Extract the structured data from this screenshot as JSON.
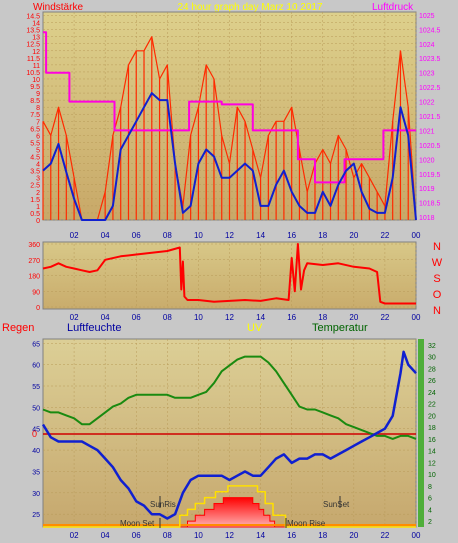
{
  "header": {
    "left_label": "Windstärke",
    "title": "24 hour graph day   Marz 10 2017",
    "right_label": "Luftdruck"
  },
  "mid_panel": {
    "compass_letters": [
      "N",
      "W",
      "S",
      "O",
      "N"
    ]
  },
  "lower_header": {
    "regen": "Regen",
    "luftfeuchte": "Luftfeuchte",
    "uv": "UV",
    "temperatur": "Temperatur"
  },
  "annotations": {
    "moon_set": "Moon Set",
    "moon_rise": "Moon Rise",
    "sun_rise": "SunRis",
    "sun_set": "SunSet",
    "zero_marker": "0"
  },
  "colors": {
    "wind": "#ff2a00",
    "wind_avg": "#1020d0",
    "pressure": "#ff00e0",
    "direction": "#ff0000",
    "humidity": "#1020d0",
    "temperature": "#1a8a10",
    "uv": "#ffe000",
    "solar": "#ff0000",
    "header_left": "#ff0000",
    "header_title": "#ffff00",
    "header_right": "#ff00ff",
    "regen_label": "#ff0000",
    "lf_label": "#0000a0",
    "temp_label": "#006400"
  },
  "chart_data": [
    {
      "type": "line",
      "title": "24 hour graph day   Marz 10 2017",
      "x_ticks": [
        "02",
        "04",
        "06",
        "08",
        "10",
        "12",
        "14",
        "16",
        "18",
        "20",
        "22",
        "00"
      ],
      "y_left_label": "Windstärke",
      "y_left_ticks": [
        0,
        0.5,
        1,
        1.5,
        2,
        2.5,
        3,
        3.5,
        4,
        4.5,
        5,
        5.5,
        6,
        6.5,
        7,
        7.5,
        8,
        8.5,
        9,
        9.5,
        10,
        10.5,
        11,
        11.5,
        12,
        12.5,
        13,
        13.5,
        14,
        14.5
      ],
      "y_left_range": [
        0,
        14.75
      ],
      "y_right_label": "Luftdruck",
      "y_right_ticks": [
        1018,
        1018.5,
        1019,
        1019.5,
        1020,
        1020.5,
        1021,
        1021.5,
        1022,
        1022.5,
        1023,
        1023.5,
        1024,
        1024.5,
        1025
      ],
      "y_right_range": [
        1017.9,
        1025.1
      ],
      "series": [
        {
          "name": "Windstärke",
          "x": [
            0,
            0.5,
            1,
            1.5,
            2,
            2.5,
            3,
            3.5,
            4,
            4.5,
            5,
            5.5,
            6,
            6.5,
            7,
            7.5,
            8,
            8.5,
            9,
            9.5,
            10,
            10.5,
            11,
            11.5,
            12,
            12.5,
            13,
            13.5,
            14,
            14.5,
            15,
            15.5,
            16,
            16.5,
            17,
            17.5,
            18,
            18.5,
            19,
            19.5,
            20,
            20.5,
            21,
            21.5,
            22,
            22.5,
            23,
            23.5,
            24
          ],
          "values": [
            7,
            6,
            8,
            6,
            3,
            0,
            0,
            0,
            2,
            6,
            8,
            11,
            12,
            12,
            13,
            10,
            11,
            4,
            1,
            6,
            8,
            11,
            10,
            6,
            4,
            8,
            7,
            5,
            3,
            6,
            7,
            7,
            8,
            5,
            2,
            4,
            5,
            4,
            6,
            5,
            3,
            4,
            3,
            2,
            1,
            7,
            12,
            8,
            0
          ]
        },
        {
          "name": "Wind average",
          "x": [
            0,
            0.5,
            1,
            1.5,
            2,
            2.5,
            3,
            3.5,
            4,
            4.5,
            5,
            5.5,
            6,
            6.5,
            7,
            7.5,
            8,
            8.5,
            9,
            9.5,
            10,
            10.5,
            11,
            11.5,
            12,
            12.5,
            13,
            13.5,
            14,
            14.5,
            15,
            15.5,
            16,
            16.5,
            17,
            17.5,
            18,
            18.5,
            19,
            19.5,
            20,
            20.5,
            21,
            21.5,
            22,
            22.5,
            23,
            23.5,
            24
          ],
          "values": [
            3.5,
            4,
            5.4,
            3.4,
            1.5,
            0,
            0,
            0,
            0,
            1,
            5,
            6,
            7,
            8,
            9,
            8.5,
            8.5,
            4,
            0.5,
            1,
            4,
            5,
            4.5,
            3,
            3,
            3.5,
            4,
            3.5,
            1,
            1,
            2.5,
            3.5,
            2,
            1,
            0.5,
            0.5,
            2,
            1,
            2.5,
            3.5,
            4,
            2,
            0.8,
            0.5,
            0.5,
            3,
            8,
            6,
            0
          ]
        },
        {
          "name": "Luftdruck",
          "x": [
            0,
            0.2,
            0.2,
            1.7,
            1.7,
            4.6,
            4.6,
            9.4,
            9.4,
            11.5,
            11.5,
            13.5,
            13.5,
            16.4,
            16.4,
            17.5,
            17.5,
            19.4,
            19.4,
            21.5,
            21.5,
            21.9,
            21.9,
            24
          ],
          "values": [
            1024.4,
            1024.4,
            1023,
            1023,
            1022,
            1022,
            1021,
            1021,
            1022,
            1022,
            1021.9,
            1021.9,
            1021,
            1021,
            1020,
            1020,
            1019.2,
            1019.2,
            1020,
            1020,
            1020,
            1020,
            1021,
            1021
          ]
        }
      ]
    },
    {
      "type": "line",
      "y_ticks": [
        0,
        90,
        180,
        270,
        360
      ],
      "y_range": [
        0,
        360
      ],
      "y_right_labels": [
        "N",
        "W",
        "S",
        "O",
        "N"
      ],
      "series": [
        {
          "name": "Windrichtung",
          "x": [
            0,
            0.5,
            1,
            1.5,
            2,
            2.5,
            3,
            3.5,
            4,
            5,
            6,
            7,
            8,
            8.8,
            8.9,
            9,
            9.1,
            9.3,
            10,
            11,
            12,
            13,
            14,
            15,
            15.8,
            16,
            16.2,
            16.4,
            16.6,
            16.8,
            17,
            18,
            19,
            20,
            21,
            21.5,
            21.7,
            22,
            23,
            24
          ],
          "values": [
            220,
            230,
            250,
            230,
            220,
            210,
            200,
            210,
            270,
            290,
            300,
            310,
            320,
            340,
            100,
            260,
            60,
            40,
            40,
            30,
            35,
            40,
            35,
            50,
            40,
            280,
            90,
            360,
            100,
            210,
            250,
            240,
            250,
            230,
            220,
            200,
            30,
            20,
            20,
            20
          ]
        }
      ]
    },
    {
      "type": "line",
      "y_left_label": "Luftfeuchte",
      "y_left_ticks": [
        25,
        30,
        35,
        40,
        45,
        50,
        55,
        60,
        65
      ],
      "y_left_range": [
        22,
        66
      ],
      "y_right_label": "Temperatur",
      "y_right_ticks": [
        2,
        4,
        6,
        8,
        10,
        12,
        14,
        16,
        18,
        20,
        22,
        24,
        26,
        28,
        30,
        32
      ],
      "y_right_range": [
        1,
        33
      ],
      "series": [
        {
          "name": "Luftfeuchte",
          "x": [
            0,
            0.5,
            1,
            1.5,
            2,
            2.5,
            3,
            3.5,
            4,
            4.5,
            5,
            5.5,
            6,
            6.5,
            7,
            7.5,
            8,
            8.5,
            9,
            9.5,
            10,
            10.5,
            11,
            11.5,
            12,
            12.5,
            13,
            13.5,
            14,
            14.5,
            15,
            15.5,
            16,
            16.5,
            17,
            17.5,
            18,
            18.5,
            19,
            19.5,
            20,
            20.5,
            21,
            21.5,
            22,
            22.5,
            23,
            23.2,
            23.5,
            24
          ],
          "values": [
            46,
            43,
            42,
            42,
            42,
            42,
            41,
            40,
            38,
            36,
            33,
            31,
            28,
            27,
            25,
            25,
            24,
            25,
            30,
            33,
            34,
            34,
            34,
            34,
            33,
            34,
            35,
            34,
            34,
            36,
            38,
            39,
            37,
            38,
            38,
            39,
            39,
            38,
            39,
            40,
            41,
            42,
            43,
            44,
            45,
            48,
            58,
            63,
            60,
            58
          ]
        },
        {
          "name": "Temperatur",
          "x": [
            0,
            0.5,
            1,
            1.5,
            2,
            2.5,
            3,
            3.5,
            4,
            4.5,
            5,
            5.5,
            6,
            6.5,
            7,
            7.5,
            8,
            8.5,
            9,
            9.5,
            10,
            10.5,
            11,
            11.5,
            12,
            12.5,
            13,
            13.5,
            14,
            14.5,
            15,
            15.5,
            16,
            16.5,
            17,
            17.5,
            18,
            18.5,
            19,
            19.5,
            20,
            20.5,
            21,
            21.5,
            22,
            22.5,
            23,
            23.5,
            24
          ],
          "values": [
            21,
            20.5,
            20.5,
            20,
            19.5,
            18.5,
            18.5,
            19.5,
            20.5,
            21.5,
            22,
            23,
            23.5,
            23.5,
            23.5,
            23.5,
            23.5,
            23,
            23,
            23,
            23.5,
            24,
            25.5,
            27.5,
            28.5,
            29.5,
            30,
            30,
            30,
            29,
            27.5,
            25.5,
            23.5,
            21.5,
            21,
            21,
            20.5,
            20,
            19.5,
            18.5,
            18,
            17.5,
            17,
            16.5,
            16.5,
            16,
            16.5,
            16.5,
            16
          ]
        },
        {
          "name": "UV",
          "x": [
            0,
            8.8,
            8.8,
            9.3,
            9.3,
            9.8,
            9.8,
            10.4,
            10.4,
            11.1,
            11.1,
            11.9,
            11.9,
            13.8,
            13.8,
            14.3,
            14.3,
            14.8,
            14.8,
            15.6,
            15.6,
            24
          ],
          "values": [
            1,
            1,
            3,
            3,
            4,
            4,
            5,
            5,
            6,
            6,
            7,
            7,
            8,
            8,
            7,
            7,
            5,
            5,
            3,
            3,
            1,
            1
          ]
        },
        {
          "name": "Solar",
          "x": [
            0,
            9.3,
            9.3,
            9.8,
            9.8,
            10.4,
            10.4,
            11.0,
            11.0,
            11.6,
            11.6,
            13.5,
            13.5,
            13.9,
            13.9,
            14.2,
            14.2,
            14.6,
            14.6,
            14.9,
            14.9,
            24
          ],
          "values": [
            1,
            1,
            2,
            2,
            3,
            3,
            4,
            4,
            5,
            5,
            6,
            6,
            5,
            5,
            4,
            4,
            3,
            3,
            2,
            2,
            1,
            1
          ]
        }
      ],
      "zero_line": {
        "name": "Regen",
        "value": 0
      }
    }
  ]
}
